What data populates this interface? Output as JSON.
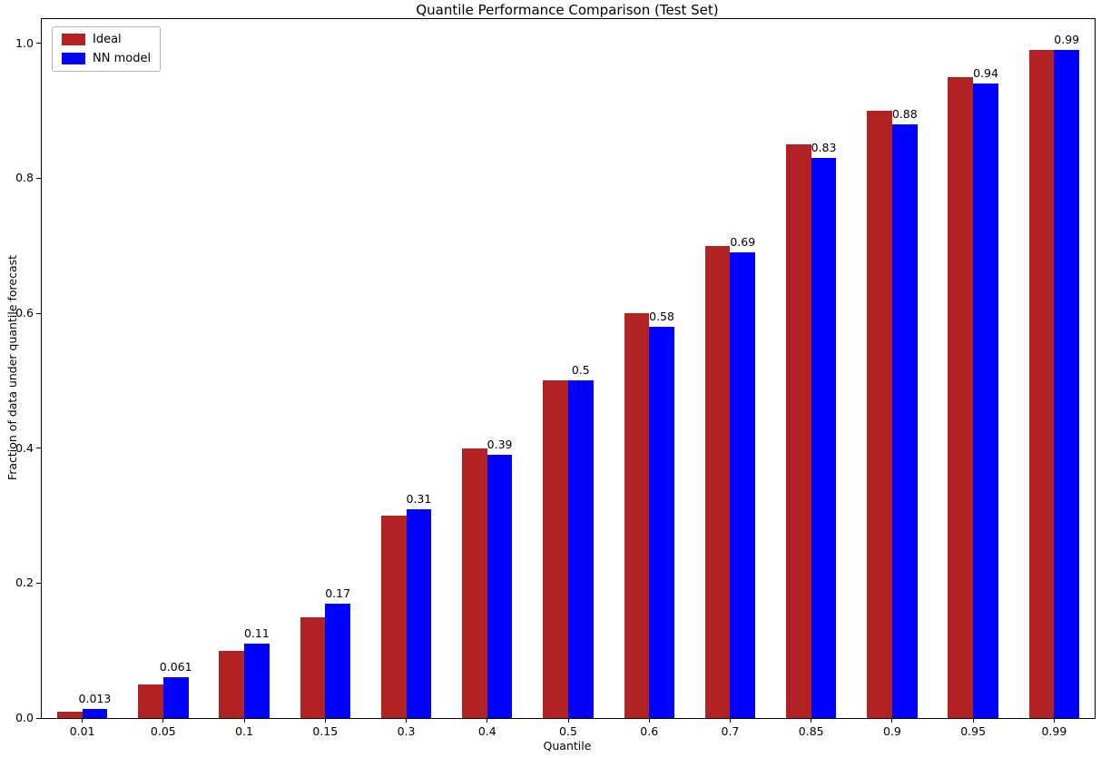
{
  "chart_data": {
    "type": "bar",
    "title": "Quantile Performance Comparison (Test Set)",
    "xlabel": "Quantile",
    "ylabel": "Fraction of data under quantile forecast",
    "categories": [
      "0.01",
      "0.05",
      "0.1",
      "0.15",
      "0.3",
      "0.4",
      "0.5",
      "0.6",
      "0.7",
      "0.85",
      "0.9",
      "0.95",
      "0.99"
    ],
    "series": [
      {
        "name": "Ideal",
        "color": "#b22222",
        "values": [
          0.01,
          0.05,
          0.1,
          0.15,
          0.3,
          0.4,
          0.5,
          0.6,
          0.7,
          0.85,
          0.9,
          0.95,
          0.99
        ]
      },
      {
        "name": "NN model",
        "color": "#0000ff",
        "values": [
          0.013,
          0.061,
          0.11,
          0.17,
          0.31,
          0.39,
          0.5,
          0.58,
          0.69,
          0.83,
          0.88,
          0.94,
          0.99
        ],
        "labels": [
          "0.013",
          "0.061",
          "0.11",
          "0.17",
          "0.31",
          "0.39",
          "0.5",
          "0.58",
          "0.69",
          "0.83",
          "0.88",
          "0.94",
          "0.99"
        ]
      }
    ],
    "ylim": [
      0,
      1.036
    ],
    "yticks": [
      {
        "value": 0.0,
        "label": "0.0"
      },
      {
        "value": 0.2,
        "label": "0.2"
      },
      {
        "value": 0.4,
        "label": "0.4"
      },
      {
        "value": 0.6,
        "label": "0.6"
      },
      {
        "value": 0.8,
        "label": "0.8"
      },
      {
        "value": 1.0,
        "label": "1.0"
      }
    ],
    "legend_position": "upper left",
    "grid": false
  }
}
